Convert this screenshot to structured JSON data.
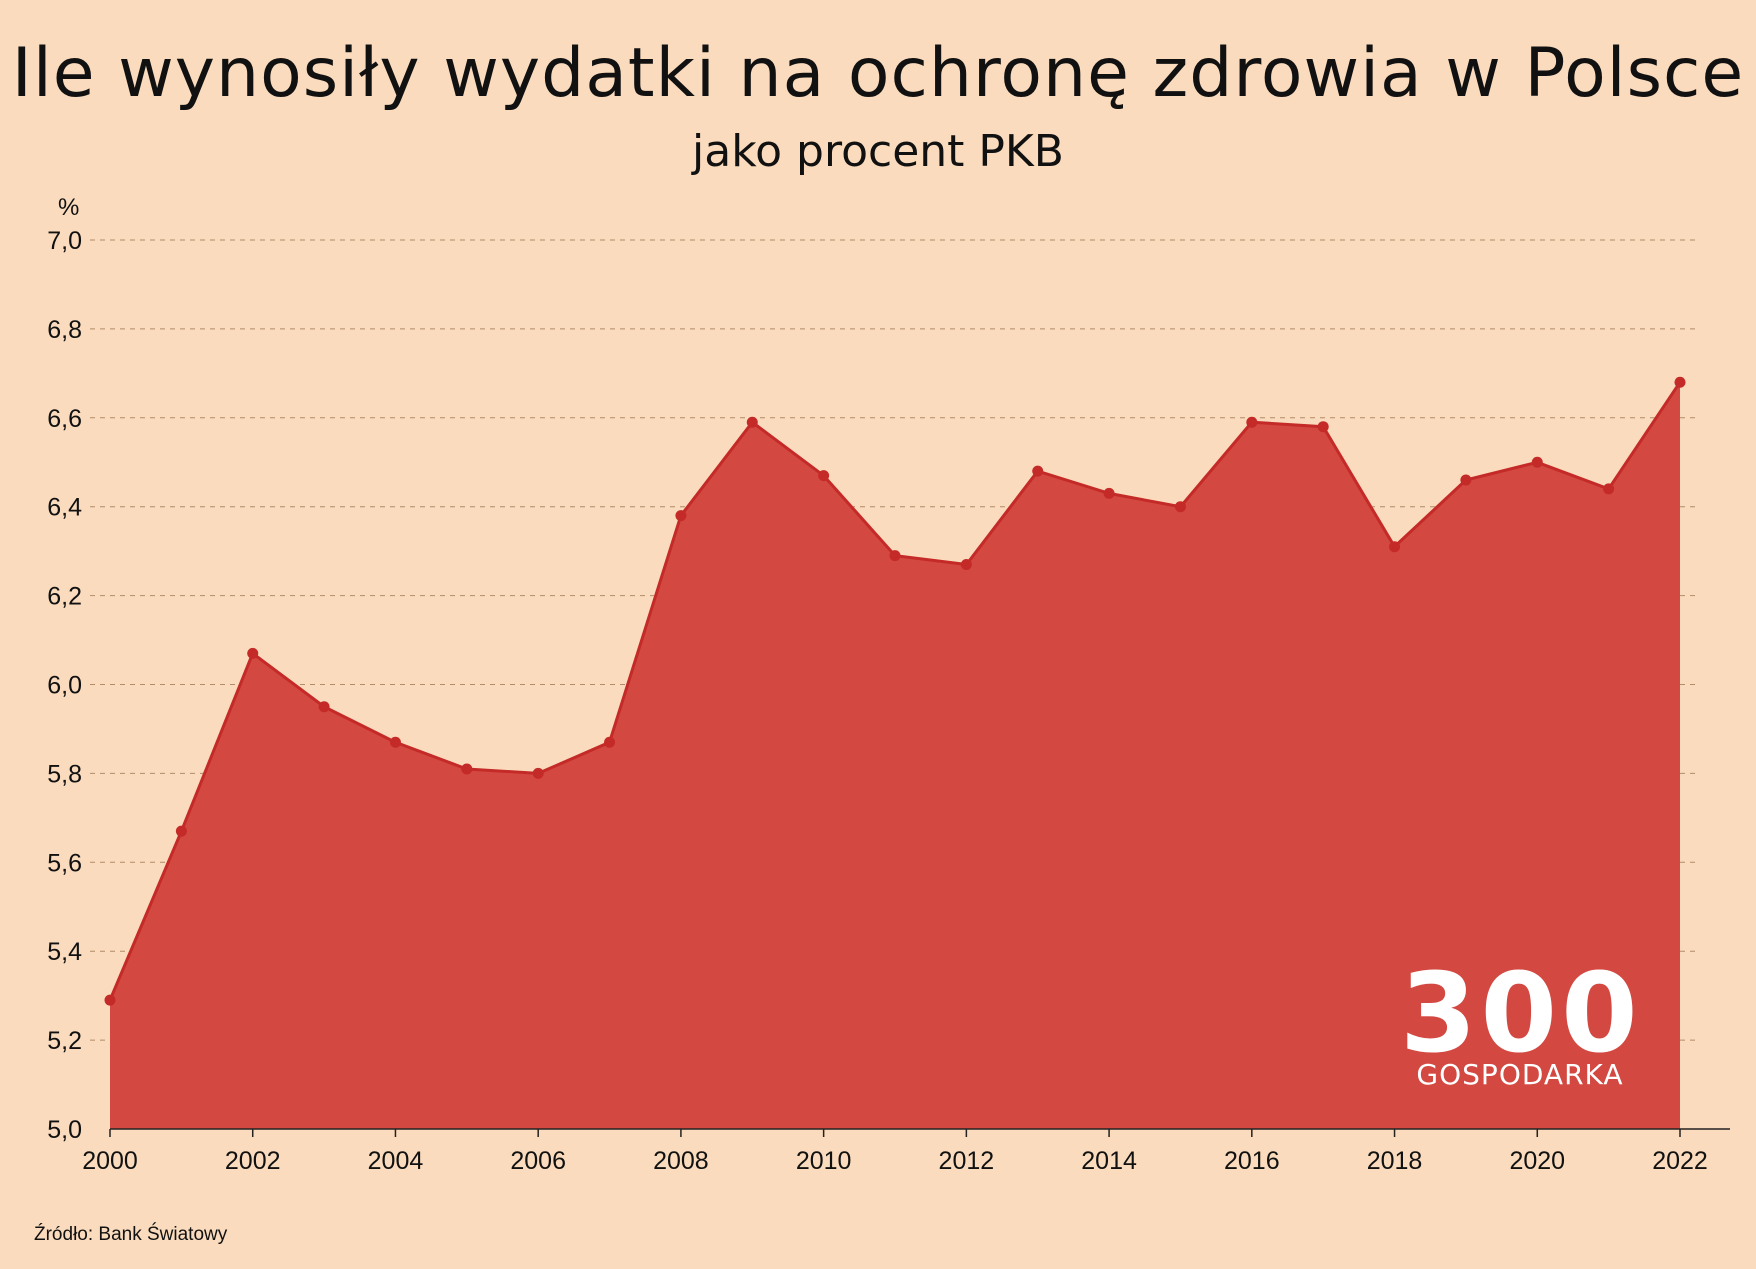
{
  "chart_data": {
    "type": "area",
    "title": "Ile wynosiły wydatki na ochronę zdrowia w Polsce",
    "subtitle": "jako procent PKB",
    "ylabel": "%",
    "xlabel": "",
    "ylim": [
      5.0,
      7.0
    ],
    "yticks": [
      5.0,
      5.2,
      5.4,
      5.6,
      5.8,
      6.0,
      6.2,
      6.4,
      6.6,
      6.8,
      7.0
    ],
    "ytick_labels": [
      "5,0",
      "5,2",
      "5,4",
      "5,6",
      "5,8",
      "6,0",
      "6,2",
      "6,4",
      "6,6",
      "6,8",
      "7,0"
    ],
    "xticks": [
      2000,
      2002,
      2004,
      2006,
      2008,
      2010,
      2012,
      2014,
      2016,
      2018,
      2020,
      2022
    ],
    "xtick_labels": [
      "2000",
      "2002",
      "2004",
      "2006",
      "2008",
      "2010",
      "2012",
      "2014",
      "2016",
      "2018",
      "2020",
      "2022"
    ],
    "grid": true,
    "x": [
      2000,
      2001,
      2002,
      2003,
      2004,
      2005,
      2006,
      2007,
      2008,
      2009,
      2010,
      2011,
      2012,
      2013,
      2014,
      2015,
      2016,
      2017,
      2018,
      2019,
      2020,
      2021,
      2022
    ],
    "values": [
      5.29,
      5.67,
      6.07,
      5.95,
      5.87,
      5.81,
      5.8,
      5.87,
      6.38,
      6.59,
      6.47,
      6.29,
      6.27,
      6.48,
      6.43,
      6.4,
      6.59,
      6.58,
      6.31,
      6.46,
      6.5,
      6.44,
      6.68
    ],
    "fill_color": "#d34841",
    "line_color": "#c42a27"
  },
  "source": "Źródło: Bank Światowy",
  "logo": {
    "number": "300",
    "word": "GOSPODARKA"
  }
}
